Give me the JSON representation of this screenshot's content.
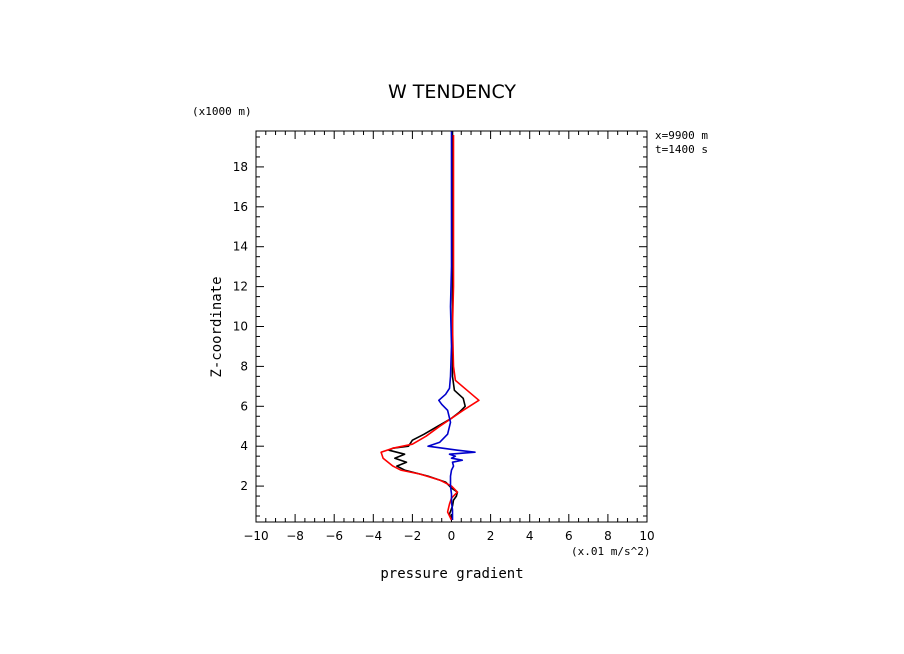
{
  "chart_data": {
    "type": "line",
    "title": "W TENDENCY",
    "xlabel": "pressure gradient",
    "ylabel": "Z-coordinate",
    "y_units": "(x1000 m)",
    "x_units": "(x.01 m/s^2)",
    "annotations": [
      "x=9900 m",
      "t=1400 s"
    ],
    "xlim": [
      -10,
      10
    ],
    "ylim": [
      0.2,
      19.8
    ],
    "x_ticks": [
      -10,
      -8,
      -6,
      -4,
      -2,
      0,
      2,
      4,
      6,
      8,
      10
    ],
    "y_ticks": [
      2,
      4,
      6,
      8,
      10,
      12,
      14,
      16,
      18
    ],
    "grid": false,
    "series": [
      {
        "color": "#000000",
        "points": [
          [
            0.0,
            0.3
          ],
          [
            -0.1,
            0.6
          ],
          [
            0.05,
            1.0
          ],
          [
            0.1,
            1.3
          ],
          [
            0.25,
            1.5
          ],
          [
            0.3,
            1.7
          ],
          [
            0.0,
            1.9
          ],
          [
            -0.3,
            2.2
          ],
          [
            -1.2,
            2.5
          ],
          [
            -2.4,
            2.8
          ],
          [
            -2.8,
            3.0
          ],
          [
            -2.3,
            3.2
          ],
          [
            -2.9,
            3.4
          ],
          [
            -2.4,
            3.6
          ],
          [
            -3.2,
            3.8
          ],
          [
            -3.0,
            3.9
          ],
          [
            -2.2,
            4.0
          ],
          [
            -2.0,
            4.3
          ],
          [
            -1.4,
            4.6
          ],
          [
            -0.7,
            5.0
          ],
          [
            0.0,
            5.4
          ],
          [
            0.4,
            5.7
          ],
          [
            0.7,
            6.0
          ],
          [
            0.6,
            6.4
          ],
          [
            0.15,
            6.8
          ],
          [
            0.05,
            7.5
          ],
          [
            0.05,
            9
          ],
          [
            0.05,
            12
          ],
          [
            0.05,
            15
          ],
          [
            0.05,
            17
          ],
          [
            0.05,
            19.8
          ]
        ]
      },
      {
        "color": "#ff0000",
        "points": [
          [
            0.0,
            0.3
          ],
          [
            -0.2,
            0.7
          ],
          [
            -0.1,
            1.1
          ],
          [
            0.0,
            1.4
          ],
          [
            0.3,
            1.7
          ],
          [
            0.0,
            2.0
          ],
          [
            -0.6,
            2.3
          ],
          [
            -1.6,
            2.6
          ],
          [
            -2.6,
            2.8
          ],
          [
            -3.0,
            3.0
          ],
          [
            -3.5,
            3.4
          ],
          [
            -3.6,
            3.7
          ],
          [
            -3.0,
            3.9
          ],
          [
            -2.0,
            4.1
          ],
          [
            -1.3,
            4.5
          ],
          [
            -0.6,
            5.0
          ],
          [
            0.0,
            5.4
          ],
          [
            0.6,
            5.8
          ],
          [
            1.4,
            6.3
          ],
          [
            0.8,
            6.8
          ],
          [
            0.2,
            7.3
          ],
          [
            0.1,
            8
          ],
          [
            0.05,
            10
          ],
          [
            0.1,
            12
          ],
          [
            0.1,
            14
          ],
          [
            0.1,
            16
          ],
          [
            0.1,
            18
          ],
          [
            0.1,
            19.6
          ]
        ]
      },
      {
        "color": "#0000cc",
        "points": [
          [
            0.05,
            0.3
          ],
          [
            0.05,
            0.8
          ],
          [
            0.0,
            1.2
          ],
          [
            0.0,
            1.6
          ],
          [
            -0.05,
            2.0
          ],
          [
            -0.05,
            2.5
          ],
          [
            0.0,
            2.8
          ],
          [
            0.1,
            3.0
          ],
          [
            0.05,
            3.2
          ],
          [
            0.55,
            3.3
          ],
          [
            0.0,
            3.4
          ],
          [
            0.2,
            3.5
          ],
          [
            -0.1,
            3.6
          ],
          [
            1.2,
            3.7
          ],
          [
            0.3,
            3.8
          ],
          [
            -1.2,
            4.0
          ],
          [
            -0.6,
            4.2
          ],
          [
            -0.2,
            4.6
          ],
          [
            -0.05,
            5.2
          ],
          [
            -0.2,
            5.8
          ],
          [
            -0.5,
            6.1
          ],
          [
            -0.65,
            6.3
          ],
          [
            -0.3,
            6.6
          ],
          [
            -0.1,
            6.9
          ],
          [
            -0.05,
            7.5
          ],
          [
            0.0,
            9
          ],
          [
            -0.05,
            11
          ],
          [
            0.0,
            13
          ],
          [
            0.0,
            15
          ],
          [
            0.0,
            17
          ],
          [
            0.0,
            19.8
          ]
        ]
      }
    ]
  }
}
